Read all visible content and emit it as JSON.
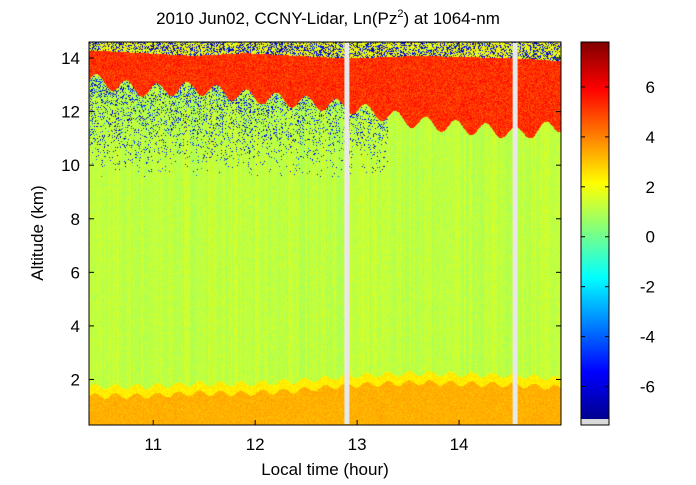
{
  "chart_data": {
    "type": "heatmap",
    "title": {
      "prefix": "2010 Jun02, CCNY-Lidar, Ln(Pz",
      "superscript": "2",
      "suffix": ") at 1064-nm"
    },
    "xlabel": "Local time (hour)",
    "ylabel": "Altitude (km)",
    "xlim": [
      10.37,
      15.0
    ],
    "ylim": [
      0.3,
      14.6
    ],
    "x_ticks": [
      11,
      12,
      13,
      14
    ],
    "x_tick_labels": [
      "11",
      "12",
      "13",
      "14"
    ],
    "y_ticks": [
      2,
      4,
      6,
      8,
      10,
      12,
      14
    ],
    "y_tick_labels": [
      "2",
      "4",
      "6",
      "8",
      "10",
      "12",
      "14"
    ],
    "colorbar": {
      "colormap": "jet",
      "clim": [
        -7.3,
        7.8
      ],
      "ticks": [
        -6,
        -4,
        -2,
        0,
        2,
        4,
        6
      ],
      "tick_labels": [
        "-6",
        "-4",
        "-2",
        "0",
        "2",
        "4",
        "6"
      ]
    },
    "data_gaps_hours": [
      12.9,
      14.55
    ],
    "features": {
      "background_value": 1.2,
      "boundary_layer": {
        "top_km": [
          1.4,
          1.4,
          1.5,
          1.5,
          1.6,
          1.8,
          1.9,
          1.8,
          1.7
        ],
        "value": 3.3
      },
      "upper_cloud": {
        "base_km": [
          13.2,
          12.8,
          12.9,
          12.6,
          12.4,
          12.2,
          11.6,
          11.2,
          11.5
        ],
        "top_km": [
          14.3,
          14.2,
          14.1,
          14.2,
          14.1,
          14.0,
          14.1,
          14.0,
          13.9
        ],
        "value": 5.2
      },
      "cloud_profile_hours": [
        10.4,
        10.9,
        11.4,
        11.9,
        12.4,
        12.9,
        13.6,
        14.6,
        15.0
      ]
    }
  }
}
